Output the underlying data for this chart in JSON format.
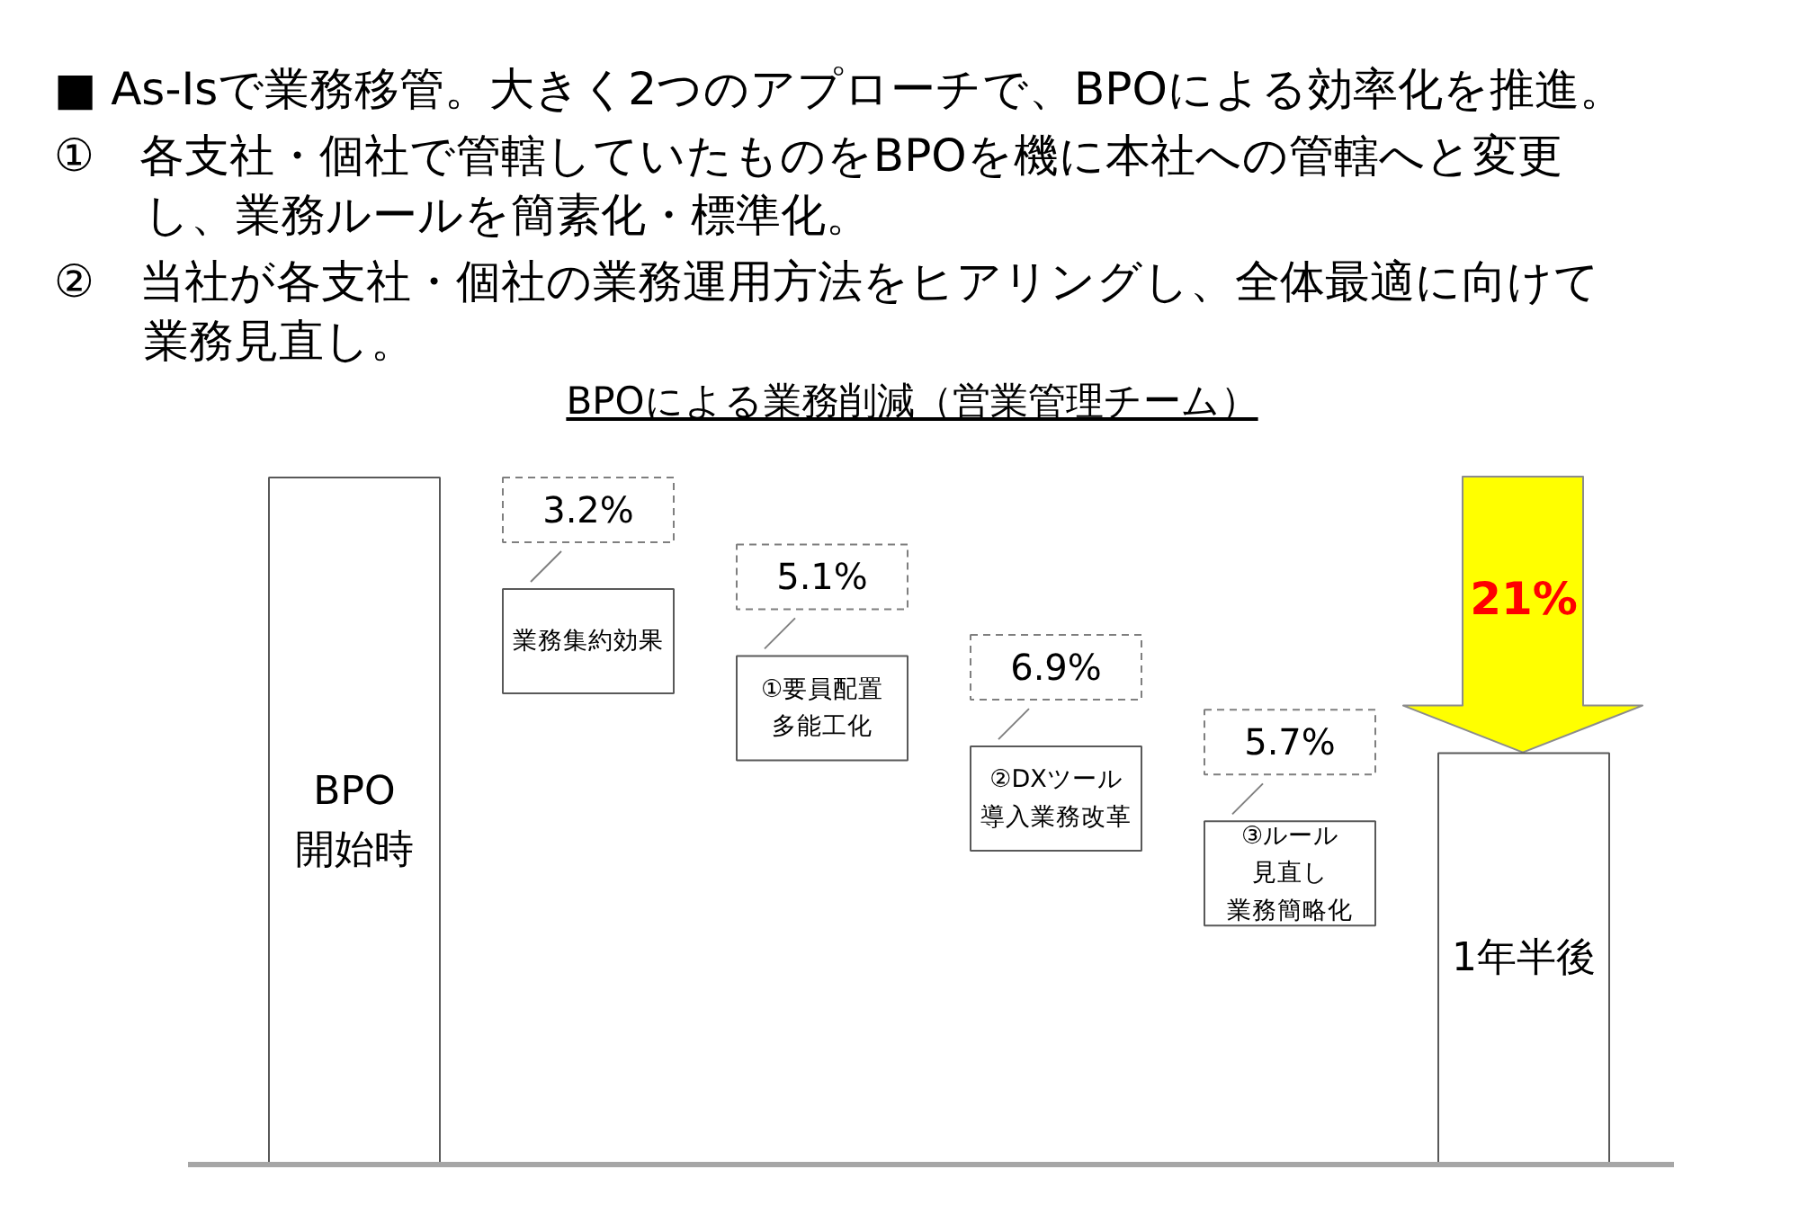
{
  "chart_data": {
    "type": "other",
    "title": "BPOによる業務削減（営業管理チーム）",
    "annotations": [
      "■ As-Isで業務移管。大きく2つのアプローチで、BPOによる効率化を推進。",
      "①　各支社・個社で管轄していたものをBPOを機に本社への管轄へと変更し、業務ルールを簡素化・標準化。",
      "②　当社が各支社・個社の業務運用方法をヒアリングし、全体最適に向けて業務見直し。"
    ],
    "categories": [
      "BPO開始時",
      "業務集約効果",
      "①要員配置多能工化",
      "②DXツール導入業務改革",
      "③ルール見直し業務簡略化",
      "1年半後"
    ],
    "values": [
      null,
      3.2,
      5.1,
      6.9,
      5.7,
      21
    ],
    "value_labels": [
      null,
      "3.2%",
      "5.1%",
      "6.9%",
      "5.7%",
      "21%"
    ]
  }
}
